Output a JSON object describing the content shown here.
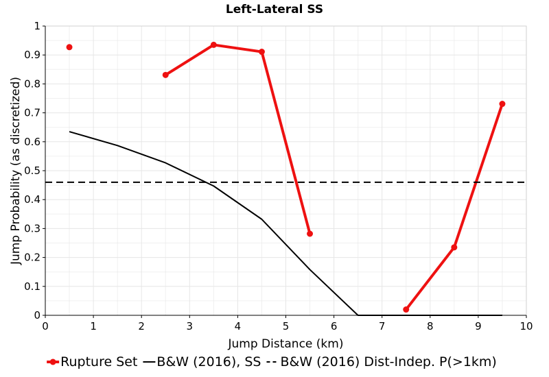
{
  "chart_data": {
    "type": "line",
    "title": "Left-Lateral SS",
    "xlabel": "Jump Distance (km)",
    "ylabel": "Jump Probability (as discretized)",
    "xlim": [
      0,
      10
    ],
    "ylim": [
      0,
      1
    ],
    "x_ticks": [
      "0",
      "1",
      "2",
      "3",
      "4",
      "5",
      "6",
      "7",
      "8",
      "9",
      "10"
    ],
    "y_ticks": [
      "0",
      "0.1",
      "0.2",
      "0.3",
      "0.4",
      "0.5",
      "0.6",
      "0.7",
      "0.8",
      "0.9",
      "1"
    ],
    "grid": true,
    "legend_position": "bottom",
    "series": [
      {
        "name": "Rupture Set",
        "color": "#ee1111",
        "style": "line-with-markers",
        "points": [
          [
            0.5,
            0.927
          ],
          null,
          [
            2.5,
            0.831
          ],
          [
            3.5,
            0.935
          ],
          [
            4.5,
            0.911
          ],
          [
            5.5,
            0.282
          ],
          null,
          [
            7.5,
            0.02
          ],
          [
            8.5,
            0.235
          ],
          [
            9.5,
            0.731
          ]
        ]
      },
      {
        "name": "B&W (2016), SS",
        "color": "#000000",
        "style": "solid",
        "points": [
          [
            0.5,
            0.635
          ],
          [
            1.5,
            0.587
          ],
          [
            2.5,
            0.527
          ],
          [
            3.5,
            0.447
          ],
          [
            4.5,
            0.332
          ],
          [
            5.5,
            0.158
          ],
          [
            6.5,
            0.0
          ],
          [
            7.5,
            0.0
          ],
          [
            8.5,
            0.0
          ],
          [
            9.5,
            0.0
          ]
        ]
      },
      {
        "name": "B&W (2016) Dist-Indep. P(>1km)",
        "color": "#000000",
        "style": "dashed",
        "points": [
          [
            0.0,
            0.46
          ],
          [
            10.0,
            0.46
          ]
        ]
      }
    ]
  }
}
